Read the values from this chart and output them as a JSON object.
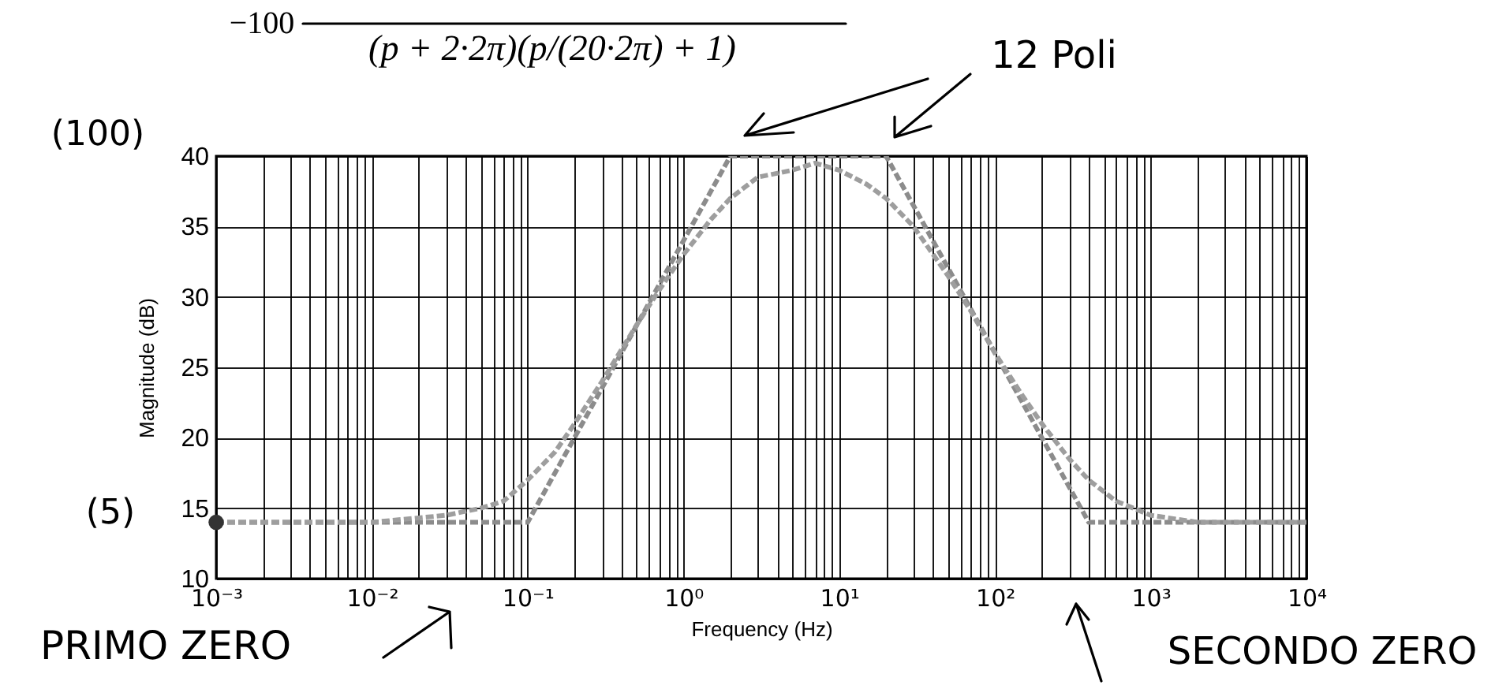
{
  "chart_data": {
    "type": "line",
    "annotations": [
      "−100",
      "(p + 2·2π)(p/(20·2π) + 1)",
      "(100)",
      "(5)",
      "12 Poli",
      "PRIMO ZERO",
      "SECONDO ZERO"
    ],
    "xlabel": "Frequency (Hz)",
    "ylabel": "Magnitude (dB)",
    "log": "x",
    "grid": true,
    "xlim": [
      0.001,
      10000
    ],
    "ylim": [
      10,
      40
    ],
    "xticks": [
      {
        "value": 0.001,
        "label": "10⁻³"
      },
      {
        "value": 0.002,
        "label": null
      },
      {
        "value": 0.003,
        "label": null
      },
      {
        "value": 0.004,
        "label": null
      },
      {
        "value": 0.005,
        "label": null
      },
      {
        "value": 0.006,
        "label": null
      },
      {
        "value": 0.007,
        "label": null
      },
      {
        "value": 0.008,
        "label": null
      },
      {
        "value": 0.009,
        "label": null
      },
      {
        "value": 0.01,
        "label": "10⁻²"
      },
      {
        "value": 0.02,
        "label": null
      },
      {
        "value": 0.03,
        "label": null
      },
      {
        "value": 0.04,
        "label": null
      },
      {
        "value": 0.05,
        "label": null
      },
      {
        "value": 0.06,
        "label": null
      },
      {
        "value": 0.07,
        "label": null
      },
      {
        "value": 0.08,
        "label": null
      },
      {
        "value": 0.09,
        "label": null
      },
      {
        "value": 0.1,
        "label": "10⁻¹"
      },
      {
        "value": 0.2,
        "label": null
      },
      {
        "value": 0.3,
        "label": null
      },
      {
        "value": 0.4,
        "label": null
      },
      {
        "value": 0.5,
        "label": null
      },
      {
        "value": 0.6,
        "label": null
      },
      {
        "value": 0.7,
        "label": null
      },
      {
        "value": 0.8,
        "label": null
      },
      {
        "value": 0.9,
        "label": null
      },
      {
        "value": 1,
        "label": "10⁰"
      },
      {
        "value": 2,
        "label": null
      },
      {
        "value": 3,
        "label": null
      },
      {
        "value": 4,
        "label": null
      },
      {
        "value": 5,
        "label": null
      },
      {
        "value": 6,
        "label": null
      },
      {
        "value": 7,
        "label": null
      },
      {
        "value": 8,
        "label": null
      },
      {
        "value": 9,
        "label": null
      },
      {
        "value": 10,
        "label": "10¹"
      },
      {
        "value": 20,
        "label": null
      },
      {
        "value": 30,
        "label": null
      },
      {
        "value": 40,
        "label": null
      },
      {
        "value": 50,
        "label": null
      },
      {
        "value": 60,
        "label": null
      },
      {
        "value": 70,
        "label": null
      },
      {
        "value": 80,
        "label": null
      },
      {
        "value": 90,
        "label": null
      },
      {
        "value": 100,
        "label": "10²"
      },
      {
        "value": 200,
        "label": null
      },
      {
        "value": 300,
        "label": null
      },
      {
        "value": 400,
        "label": null
      },
      {
        "value": 500,
        "label": null
      },
      {
        "value": 600,
        "label": null
      },
      {
        "value": 700,
        "label": null
      },
      {
        "value": 800,
        "label": null
      },
      {
        "value": 900,
        "label": null
      },
      {
        "value": 1000,
        "label": "10³"
      },
      {
        "value": 2000,
        "label": null
      },
      {
        "value": 3000,
        "label": null
      },
      {
        "value": 4000,
        "label": null
      },
      {
        "value": 5000,
        "label": null
      },
      {
        "value": 6000,
        "label": null
      },
      {
        "value": 7000,
        "label": null
      },
      {
        "value": 8000,
        "label": null
      },
      {
        "value": 9000,
        "label": null
      },
      {
        "value": 10000,
        "label": "10⁴"
      }
    ],
    "yticks": [
      10,
      15,
      20,
      25,
      30,
      35,
      40
    ],
    "series": [
      {
        "color": "#8c8c8c",
        "line_style": "dashed",
        "x": [
          0.001,
          0.1,
          2,
          20,
          400,
          10000
        ],
        "values": [
          14,
          14,
          40,
          40,
          14,
          14
        ]
      },
      {
        "color": "#9e9e9e",
        "line_style": "dashed",
        "x": [
          0.001,
          0.01,
          0.03,
          0.05,
          0.07,
          0.1,
          0.15,
          0.2,
          0.3,
          0.5,
          0.7,
          1,
          1.5,
          2,
          3,
          5,
          7,
          10,
          15,
          20,
          30,
          50,
          70,
          100,
          150,
          200,
          300,
          400,
          600,
          1000,
          2000,
          5000,
          10000
        ],
        "values": [
          14,
          14,
          14.5,
          15,
          15.5,
          17,
          19,
          21,
          24,
          28,
          30.5,
          33,
          35.5,
          37,
          38.5,
          39,
          39.5,
          39,
          38,
          37,
          35,
          31.5,
          29,
          26,
          23,
          21,
          18.5,
          17,
          15.5,
          14.5,
          14,
          14,
          14
        ]
      },
      {
        "type": "scatter",
        "marker": "circle",
        "color": "#333333",
        "x": [
          0.001
        ],
        "values": [
          14
        ]
      }
    ]
  }
}
